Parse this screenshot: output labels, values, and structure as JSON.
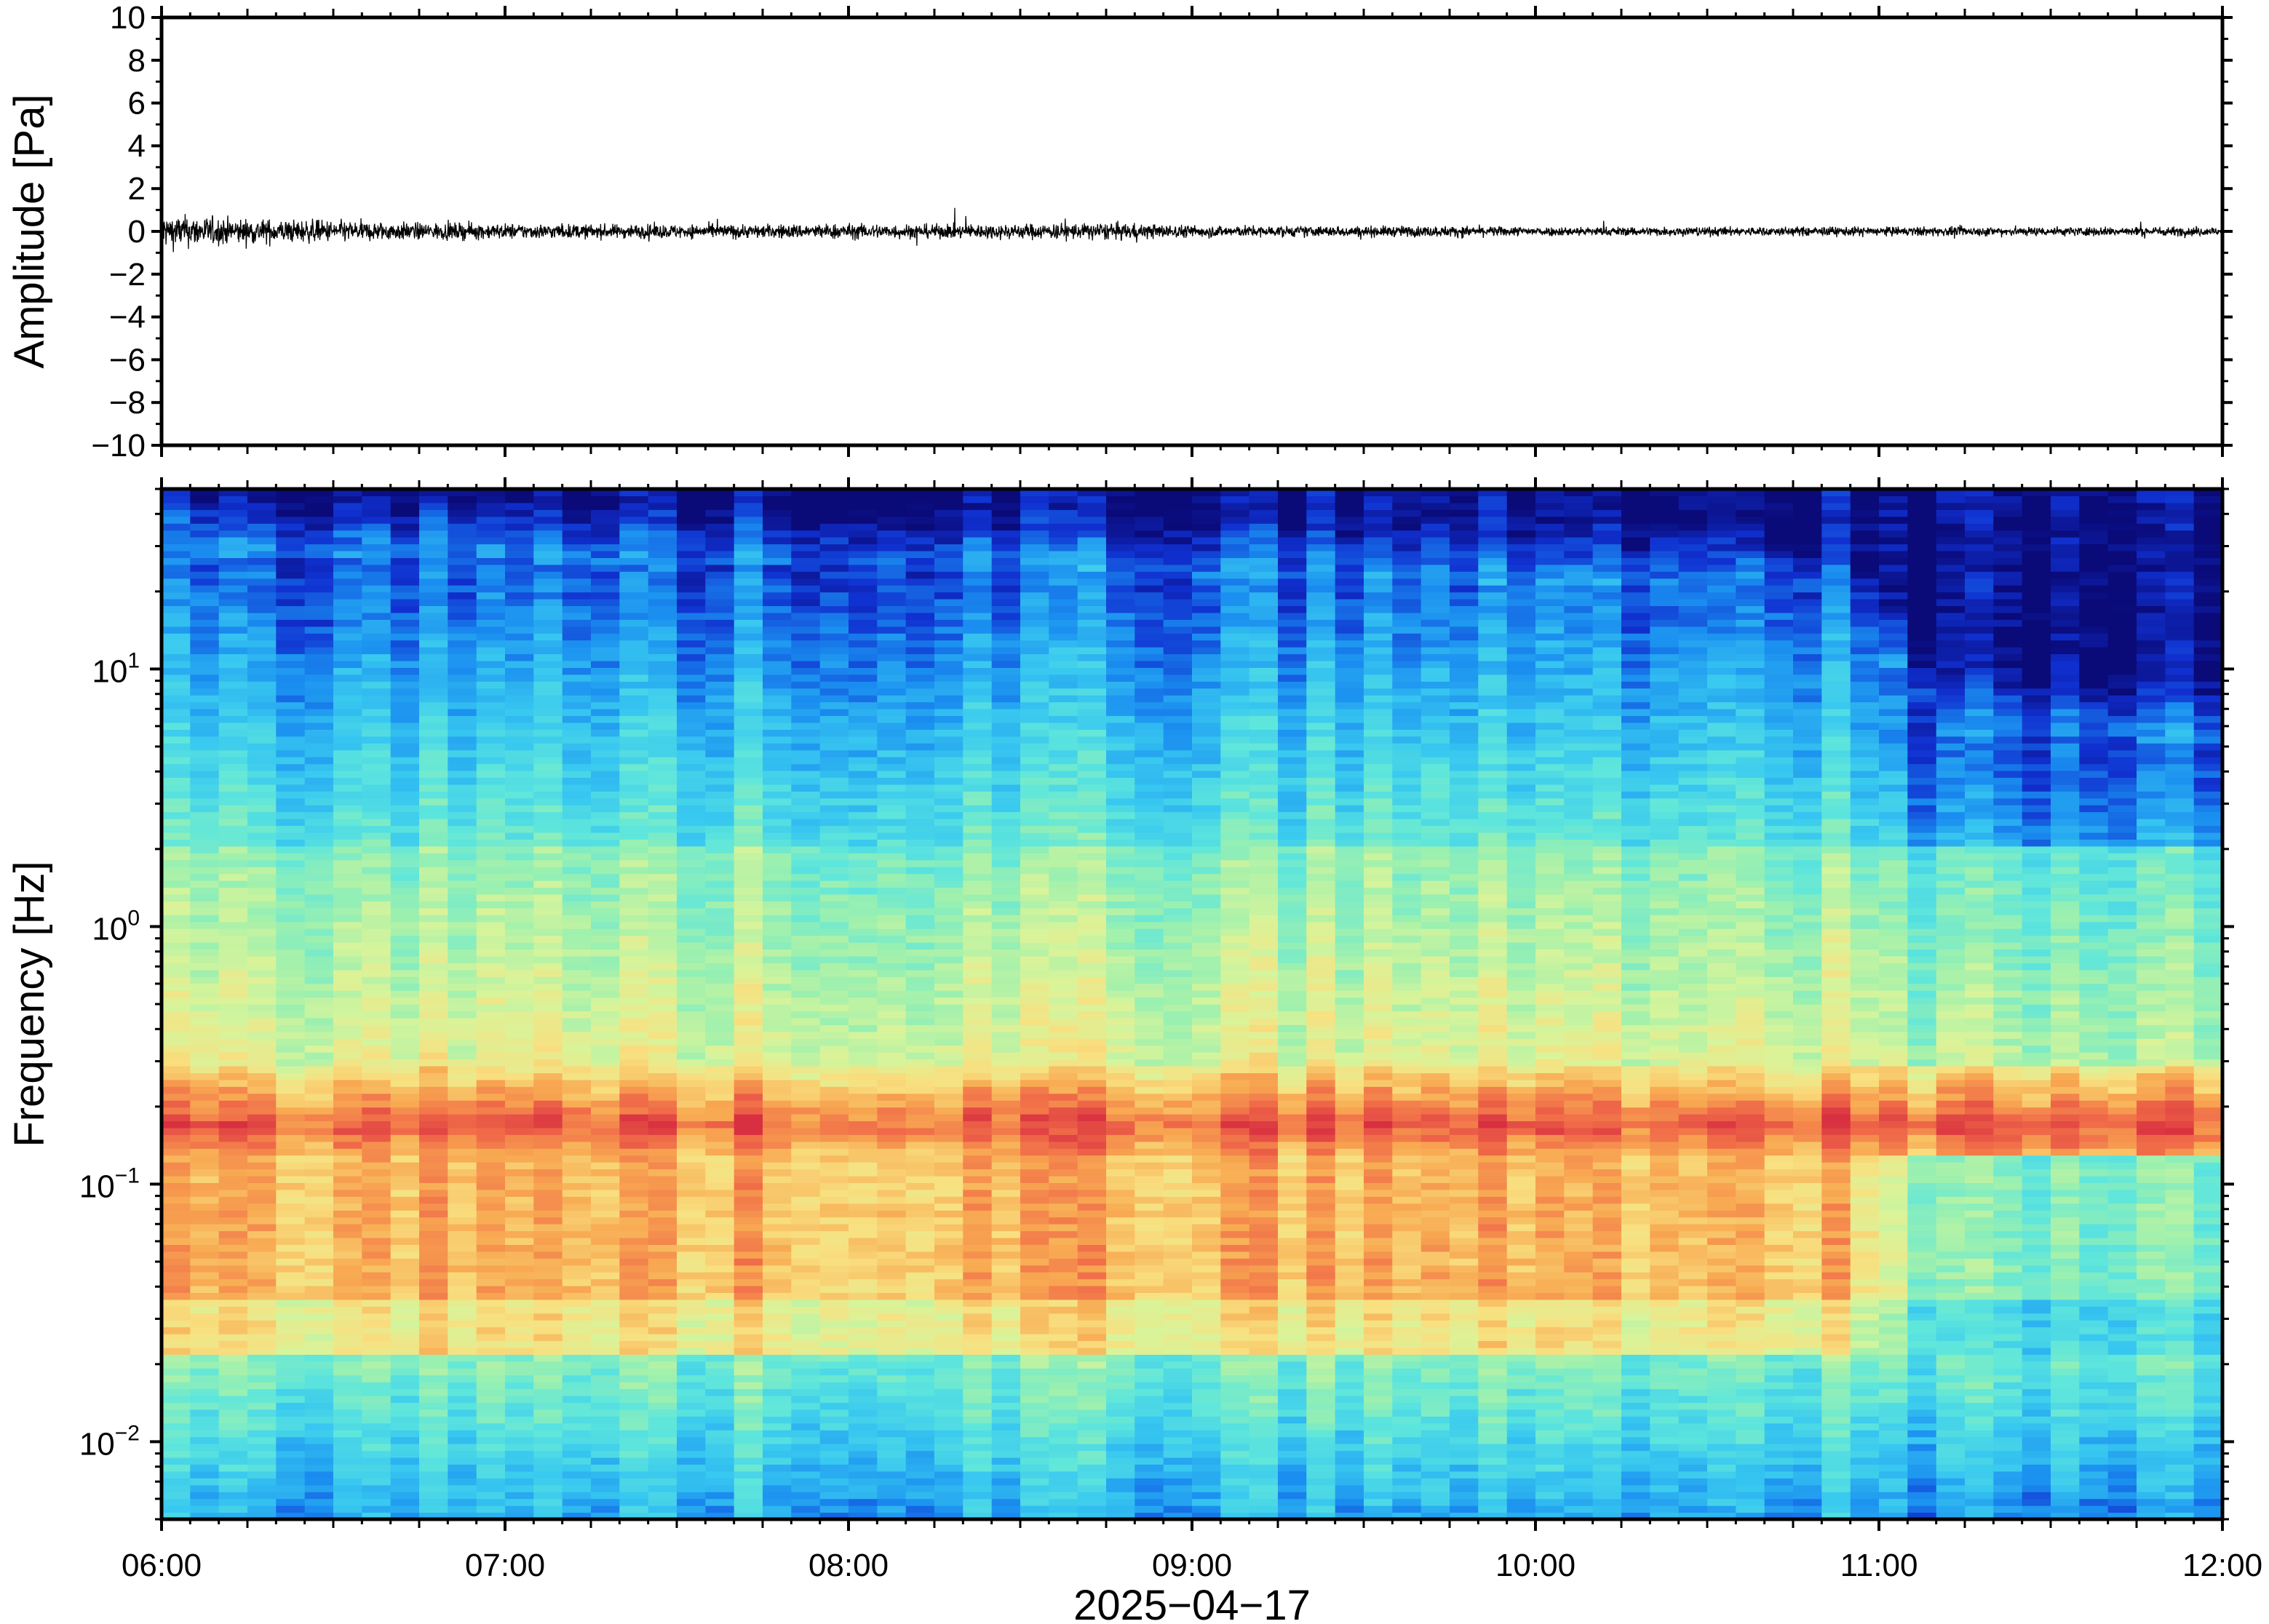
{
  "chart_data": [
    {
      "type": "line",
      "ylabel": "Amplitude [Pa]",
      "ylim": [
        -10,
        10
      ],
      "yticks": [
        10,
        8,
        6,
        4,
        2,
        0,
        -2,
        -4,
        -6,
        -8,
        -10
      ],
      "ytick_labels": [
        "10",
        "8",
        "6",
        "4",
        "2",
        "0",
        "−2",
        "−4",
        "−6",
        "−8",
        "−10"
      ],
      "x_range": [
        "06:00",
        "12:00"
      ],
      "series": [
        {
          "color": "#000000",
          "x_hours": [
            6.0,
            6.25,
            6.5,
            6.75,
            7.0,
            7.25,
            7.5,
            7.75,
            8.0,
            8.25,
            8.5,
            8.75,
            9.0,
            9.25,
            9.5,
            9.75,
            10.0,
            10.25,
            10.5,
            10.75,
            11.0,
            11.25,
            11.5,
            11.75,
            12.0
          ],
          "envelope_pa": [
            1.1,
            0.8,
            0.7,
            0.55,
            0.5,
            0.45,
            0.45,
            0.45,
            0.5,
            0.45,
            0.5,
            0.55,
            0.4,
            0.35,
            0.35,
            0.35,
            0.3,
            0.3,
            0.3,
            0.3,
            0.3,
            0.3,
            0.3,
            0.3,
            0.3
          ]
        }
      ]
    },
    {
      "type": "heatmap",
      "ylabel": "Frequency [Hz]",
      "xlabel": "2025−04−17",
      "yscale": "log",
      "ylim": [
        0.005,
        50
      ],
      "ytick_labels": [
        {
          "base": "10",
          "exp": "1",
          "value": 10
        },
        {
          "base": "10",
          "exp": "0",
          "value": 1
        },
        {
          "base": "10",
          "exp": "−1",
          "value": 0.1
        },
        {
          "base": "10",
          "exp": "−2",
          "value": 0.01
        }
      ],
      "xtick_labels": [
        "06:00",
        "07:00",
        "08:00",
        "09:00",
        "10:00",
        "11:00",
        "12:00"
      ],
      "colormap": [
        "#0a0a78",
        "#1030d0",
        "#1a8ef0",
        "#38c8f0",
        "#5ee6dc",
        "#9af0b0",
        "#d8f49a",
        "#f8e080",
        "#f8aa52",
        "#f06a48",
        "#d83040"
      ],
      "colormap_name": "jet-like",
      "notes_visible_bands": {
        "dominant_band_hz": 0.17,
        "noise_drop_after": "10:50"
      }
    }
  ]
}
